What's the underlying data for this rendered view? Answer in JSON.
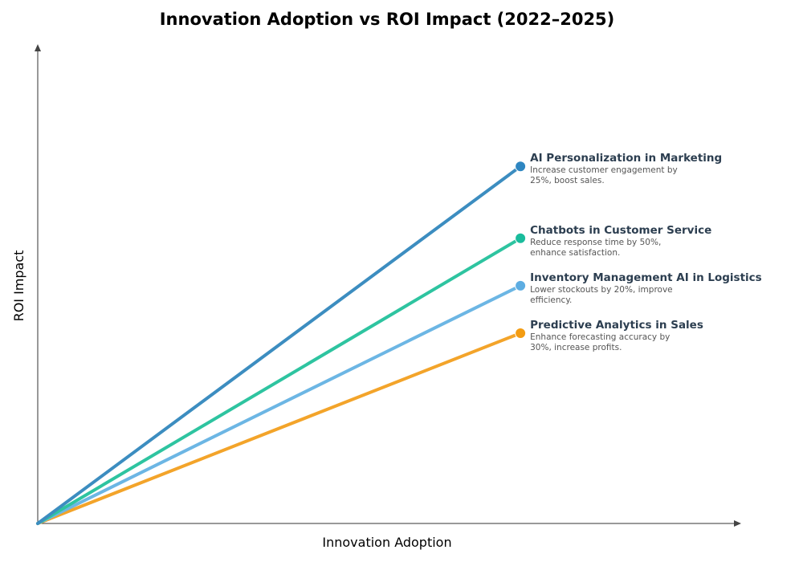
{
  "chart_data": {
    "type": "line",
    "title": "Innovation Adoption vs ROI Impact (2022–2025)",
    "xlabel": "Innovation Adoption",
    "ylabel": "ROI Impact",
    "xlim": [
      0,
      1
    ],
    "ylim": [
      0,
      1
    ],
    "grid": false,
    "ticks": false,
    "series": [
      {
        "name": "AI Personalization in Marketing",
        "description": [
          "Increase customer engagement by",
          "25%, boost sales."
        ],
        "color": "#2e86c1",
        "line_color": "#3c8dc0",
        "x": [
          0,
          0.687
        ],
        "y": [
          0,
          0.745
        ]
      },
      {
        "name": "Chatbots in Customer Service",
        "description": [
          "Reduce response time by 50%,",
          "enhance satisfaction."
        ],
        "color": "#1abc9c",
        "line_color": "#2ec4a0",
        "x": [
          0,
          0.687
        ],
        "y": [
          0,
          0.595
        ]
      },
      {
        "name": "Inventory Management AI in Logistics",
        "description": [
          "Lower stockouts by 20%, improve",
          "efficiency."
        ],
        "color": "#5dade2",
        "line_color": "#6cb6e4",
        "x": [
          0,
          0.687
        ],
        "y": [
          0,
          0.496
        ]
      },
      {
        "name": "Predictive Analytics in Sales",
        "description": [
          "Enhance forecasting accuracy by",
          "30%, increase profits."
        ],
        "color": "#f39c12",
        "line_color": "#f3a42a",
        "x": [
          0,
          0.687
        ],
        "y": [
          0,
          0.397
        ]
      }
    ]
  }
}
